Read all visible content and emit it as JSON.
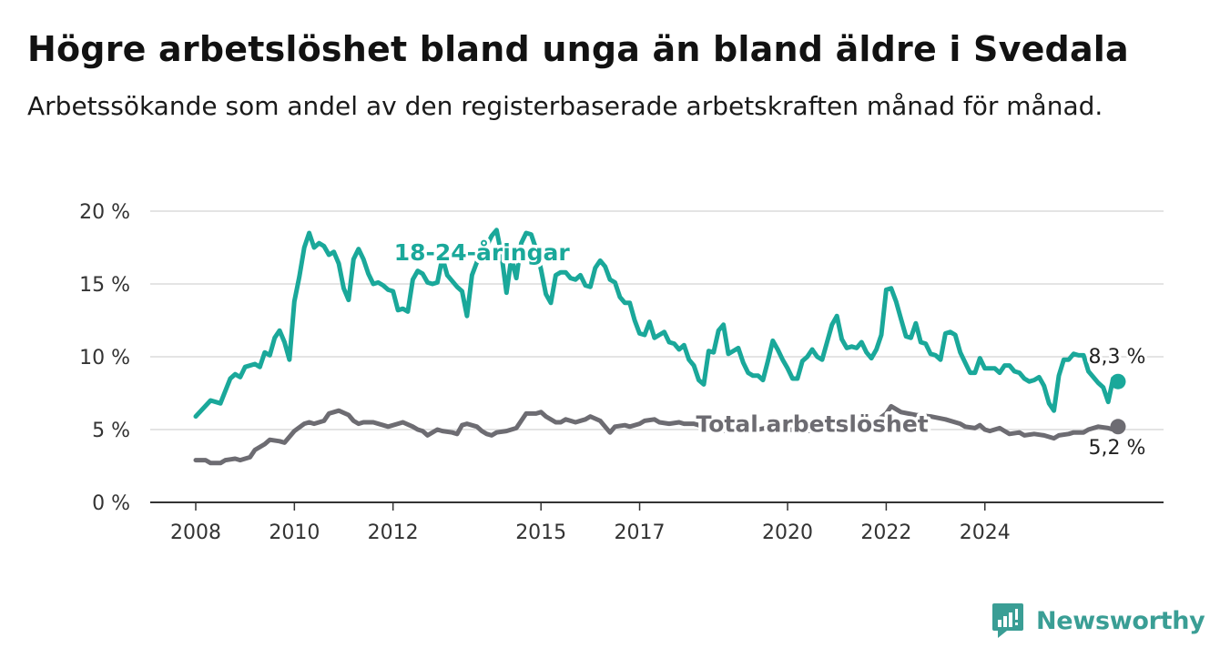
{
  "header": {
    "title": "Högre arbetslöshet bland unga än bland äldre i Svedala",
    "subtitle": "Arbetssökande som andel av den registerbaserade arbetskraften månad för månad."
  },
  "branding": {
    "name": "Newsworthy",
    "icon": "newsworthy-logo-icon",
    "color": "#3a9e95"
  },
  "chart_data": {
    "type": "line",
    "ylim": [
      0,
      20
    ],
    "y_ticks": [
      0,
      5,
      10,
      15,
      20
    ],
    "y_tick_labels": [
      "0 %",
      "5 %",
      "10 %",
      "15 %",
      "20 %"
    ],
    "x_ticks": [
      2008,
      2010,
      2012,
      2015,
      2017,
      2020,
      2022,
      2024
    ],
    "x_tick_labels": [
      "2008",
      "2010",
      "2012",
      "2015",
      "2017",
      "2020",
      "2022",
      "2024"
    ],
    "grid": true,
    "series": [
      {
        "name": "18-24-åringar",
        "color": "#1aa89a",
        "end_label": "8,3 %",
        "points": [
          [
            2008.0,
            5.9
          ],
          [
            2008.3,
            7.0
          ],
          [
            2008.5,
            6.8
          ],
          [
            2008.7,
            8.5
          ],
          [
            2008.8,
            8.8
          ],
          [
            2008.9,
            8.6
          ],
          [
            2009.0,
            9.3
          ],
          [
            2009.2,
            9.5
          ],
          [
            2009.3,
            9.3
          ],
          [
            2009.4,
            10.3
          ],
          [
            2009.5,
            10.1
          ],
          [
            2009.6,
            11.3
          ],
          [
            2009.7,
            11.8
          ],
          [
            2009.8,
            11.0
          ],
          [
            2009.9,
            9.8
          ],
          [
            2010.0,
            13.8
          ],
          [
            2010.1,
            15.5
          ],
          [
            2010.2,
            17.5
          ],
          [
            2010.3,
            18.5
          ],
          [
            2010.4,
            17.5
          ],
          [
            2010.5,
            17.8
          ],
          [
            2010.6,
            17.6
          ],
          [
            2010.7,
            17.0
          ],
          [
            2010.8,
            17.2
          ],
          [
            2010.9,
            16.4
          ],
          [
            2011.0,
            14.7
          ],
          [
            2011.1,
            13.9
          ],
          [
            2011.2,
            16.7
          ],
          [
            2011.3,
            17.4
          ],
          [
            2011.4,
            16.7
          ],
          [
            2011.5,
            15.7
          ],
          [
            2011.6,
            15.0
          ],
          [
            2011.7,
            15.1
          ],
          [
            2011.8,
            14.9
          ],
          [
            2011.9,
            14.6
          ],
          [
            2012.0,
            14.5
          ],
          [
            2012.1,
            13.2
          ],
          [
            2012.2,
            13.3
          ],
          [
            2012.3,
            13.1
          ],
          [
            2012.4,
            15.3
          ],
          [
            2012.5,
            15.9
          ],
          [
            2012.6,
            15.7
          ],
          [
            2012.7,
            15.1
          ],
          [
            2012.8,
            15.0
          ],
          [
            2012.9,
            15.1
          ],
          [
            2013.0,
            16.8
          ],
          [
            2013.1,
            15.6
          ],
          [
            2013.2,
            15.2
          ],
          [
            2013.3,
            14.8
          ],
          [
            2013.4,
            14.5
          ],
          [
            2013.5,
            12.8
          ],
          [
            2013.6,
            15.6
          ],
          [
            2013.7,
            16.5
          ],
          [
            2013.8,
            17.2
          ],
          [
            2013.9,
            17.6
          ],
          [
            2014.0,
            18.3
          ],
          [
            2014.1,
            18.7
          ],
          [
            2014.2,
            17.0
          ],
          [
            2014.3,
            14.4
          ],
          [
            2014.4,
            16.8
          ],
          [
            2014.5,
            15.4
          ],
          [
            2014.6,
            17.8
          ],
          [
            2014.7,
            18.5
          ],
          [
            2014.8,
            18.4
          ],
          [
            2014.9,
            17.4
          ],
          [
            2015.0,
            16.0
          ],
          [
            2015.1,
            14.3
          ],
          [
            2015.2,
            13.7
          ],
          [
            2015.3,
            15.6
          ],
          [
            2015.4,
            15.8
          ],
          [
            2015.5,
            15.8
          ],
          [
            2015.6,
            15.4
          ],
          [
            2015.7,
            15.3
          ],
          [
            2015.8,
            15.6
          ],
          [
            2015.9,
            14.9
          ],
          [
            2016.0,
            14.8
          ],
          [
            2016.1,
            16.1
          ],
          [
            2016.2,
            16.6
          ],
          [
            2016.3,
            16.2
          ],
          [
            2016.4,
            15.3
          ],
          [
            2016.5,
            15.1
          ],
          [
            2016.6,
            14.1
          ],
          [
            2016.7,
            13.7
          ],
          [
            2016.8,
            13.7
          ],
          [
            2016.9,
            12.5
          ],
          [
            2017.0,
            11.6
          ],
          [
            2017.1,
            11.5
          ],
          [
            2017.2,
            12.4
          ],
          [
            2017.3,
            11.3
          ],
          [
            2017.4,
            11.5
          ],
          [
            2017.5,
            11.7
          ],
          [
            2017.6,
            11.0
          ],
          [
            2017.7,
            10.9
          ],
          [
            2017.8,
            10.5
          ],
          [
            2017.9,
            10.8
          ],
          [
            2018.0,
            9.8
          ],
          [
            2018.1,
            9.4
          ],
          [
            2018.2,
            8.4
          ],
          [
            2018.3,
            8.1
          ],
          [
            2018.4,
            10.4
          ],
          [
            2018.5,
            10.3
          ],
          [
            2018.6,
            11.8
          ],
          [
            2018.7,
            12.2
          ],
          [
            2018.8,
            10.2
          ],
          [
            2018.9,
            10.4
          ],
          [
            2019.0,
            10.6
          ],
          [
            2019.1,
            9.6
          ],
          [
            2019.2,
            8.9
          ],
          [
            2019.3,
            8.7
          ],
          [
            2019.4,
            8.7
          ],
          [
            2019.5,
            8.4
          ],
          [
            2019.6,
            9.7
          ],
          [
            2019.7,
            11.1
          ],
          [
            2019.8,
            10.5
          ],
          [
            2019.9,
            9.8
          ],
          [
            2020.0,
            9.2
          ],
          [
            2020.1,
            8.5
          ],
          [
            2020.2,
            8.5
          ],
          [
            2020.3,
            9.7
          ],
          [
            2020.4,
            10.0
          ],
          [
            2020.5,
            10.5
          ],
          [
            2020.6,
            10.0
          ],
          [
            2020.7,
            9.8
          ],
          [
            2020.8,
            11.0
          ],
          [
            2020.9,
            12.2
          ],
          [
            2021.0,
            12.8
          ],
          [
            2021.1,
            11.2
          ],
          [
            2021.2,
            10.6
          ],
          [
            2021.3,
            10.7
          ],
          [
            2021.4,
            10.6
          ],
          [
            2021.5,
            11.0
          ],
          [
            2021.6,
            10.3
          ],
          [
            2021.7,
            9.9
          ],
          [
            2021.8,
            10.5
          ],
          [
            2021.9,
            11.5
          ],
          [
            2022.0,
            14.6
          ],
          [
            2022.1,
            14.7
          ],
          [
            2022.2,
            13.8
          ],
          [
            2022.3,
            12.6
          ],
          [
            2022.4,
            11.4
          ],
          [
            2022.5,
            11.3
          ],
          [
            2022.6,
            12.3
          ],
          [
            2022.7,
            11.0
          ],
          [
            2022.8,
            10.9
          ],
          [
            2022.9,
            10.2
          ],
          [
            2023.0,
            10.1
          ],
          [
            2023.1,
            9.8
          ],
          [
            2023.2,
            11.6
          ],
          [
            2023.3,
            11.7
          ],
          [
            2023.4,
            11.5
          ],
          [
            2023.5,
            10.3
          ],
          [
            2023.6,
            9.6
          ],
          [
            2023.7,
            8.9
          ],
          [
            2023.8,
            8.9
          ],
          [
            2023.9,
            9.9
          ],
          [
            2024.0,
            9.2
          ],
          [
            2024.1,
            9.2
          ],
          [
            2024.2,
            9.2
          ],
          [
            2024.3,
            8.9
          ],
          [
            2024.4,
            9.4
          ],
          [
            2024.5,
            9.4
          ],
          [
            2024.6,
            9.0
          ],
          [
            2024.7,
            8.9
          ],
          [
            2024.8,
            8.5
          ],
          [
            2024.9,
            8.3
          ],
          [
            2025.0,
            8.4
          ],
          [
            2025.1,
            8.6
          ],
          [
            2025.2,
            8.0
          ],
          [
            2025.3,
            6.8
          ],
          [
            2025.4,
            6.3
          ],
          [
            2025.5,
            8.7
          ],
          [
            2025.6,
            9.8
          ],
          [
            2025.7,
            9.8
          ],
          [
            2025.8,
            10.2
          ],
          [
            2025.9,
            10.1
          ],
          [
            2026.0,
            10.1
          ],
          [
            2026.1,
            9.0
          ],
          [
            2026.2,
            8.6
          ],
          [
            2026.3,
            8.2
          ],
          [
            2026.4,
            7.9
          ],
          [
            2026.5,
            6.9
          ],
          [
            2026.6,
            8.5
          ],
          [
            2026.7,
            8.3
          ]
        ]
      },
      {
        "name": "Total arbetslöshet",
        "color": "#6d6c72",
        "end_label": "5,2 %",
        "points": [
          [
            2008.0,
            2.9
          ],
          [
            2008.2,
            2.9
          ],
          [
            2008.3,
            2.7
          ],
          [
            2008.5,
            2.7
          ],
          [
            2008.6,
            2.9
          ],
          [
            2008.8,
            3.0
          ],
          [
            2008.9,
            2.9
          ],
          [
            2009.1,
            3.1
          ],
          [
            2009.2,
            3.6
          ],
          [
            2009.4,
            4.0
          ],
          [
            2009.5,
            4.3
          ],
          [
            2009.7,
            4.2
          ],
          [
            2009.8,
            4.1
          ],
          [
            2010.0,
            4.9
          ],
          [
            2010.2,
            5.4
          ],
          [
            2010.3,
            5.5
          ],
          [
            2010.4,
            5.4
          ],
          [
            2010.6,
            5.6
          ],
          [
            2010.7,
            6.1
          ],
          [
            2010.8,
            6.2
          ],
          [
            2010.9,
            6.3
          ],
          [
            2011.1,
            6.0
          ],
          [
            2011.2,
            5.6
          ],
          [
            2011.3,
            5.4
          ],
          [
            2011.4,
            5.5
          ],
          [
            2011.6,
            5.5
          ],
          [
            2011.8,
            5.3
          ],
          [
            2011.9,
            5.2
          ],
          [
            2012.1,
            5.4
          ],
          [
            2012.2,
            5.5
          ],
          [
            2012.4,
            5.2
          ],
          [
            2012.5,
            5.0
          ],
          [
            2012.6,
            4.9
          ],
          [
            2012.7,
            4.6
          ],
          [
            2012.9,
            5.0
          ],
          [
            2013.0,
            4.9
          ],
          [
            2013.2,
            4.8
          ],
          [
            2013.3,
            4.7
          ],
          [
            2013.4,
            5.3
          ],
          [
            2013.5,
            5.4
          ],
          [
            2013.7,
            5.2
          ],
          [
            2013.8,
            4.9
          ],
          [
            2013.9,
            4.7
          ],
          [
            2014.0,
            4.6
          ],
          [
            2014.1,
            4.8
          ],
          [
            2014.3,
            4.9
          ],
          [
            2014.5,
            5.1
          ],
          [
            2014.6,
            5.6
          ],
          [
            2014.7,
            6.1
          ],
          [
            2014.9,
            6.1
          ],
          [
            2015.0,
            6.2
          ],
          [
            2015.1,
            5.9
          ],
          [
            2015.3,
            5.5
          ],
          [
            2015.4,
            5.5
          ],
          [
            2015.5,
            5.7
          ],
          [
            2015.6,
            5.6
          ],
          [
            2015.7,
            5.5
          ],
          [
            2015.9,
            5.7
          ],
          [
            2016.0,
            5.9
          ],
          [
            2016.2,
            5.6
          ],
          [
            2016.3,
            5.2
          ],
          [
            2016.4,
            4.8
          ],
          [
            2016.5,
            5.2
          ],
          [
            2016.7,
            5.3
          ],
          [
            2016.8,
            5.2
          ],
          [
            2017.0,
            5.4
          ],
          [
            2017.1,
            5.6
          ],
          [
            2017.3,
            5.7
          ],
          [
            2017.4,
            5.5
          ],
          [
            2017.6,
            5.4
          ],
          [
            2017.8,
            5.5
          ],
          [
            2017.9,
            5.4
          ],
          [
            2018.1,
            5.4
          ],
          [
            2018.2,
            5.3
          ],
          [
            2018.3,
            5.2
          ],
          [
            2018.4,
            5.3
          ],
          [
            2018.5,
            5.4
          ],
          [
            2018.6,
            5.0
          ],
          [
            2018.8,
            4.9
          ],
          [
            2018.9,
            4.9
          ],
          [
            2019.0,
            4.9
          ],
          [
            2019.1,
            4.9
          ],
          [
            2019.2,
            5.0
          ],
          [
            2019.4,
            5.0
          ],
          [
            2019.7,
            5.2
          ],
          [
            2020.0,
            5.0
          ],
          [
            2020.4,
            4.9
          ],
          [
            2020.8,
            5.1
          ],
          [
            2021.0,
            5.2
          ],
          [
            2021.4,
            5.4
          ],
          [
            2021.8,
            5.6
          ],
          [
            2022.0,
            6.1
          ],
          [
            2022.1,
            6.6
          ],
          [
            2022.3,
            6.2
          ],
          [
            2022.6,
            6.0
          ],
          [
            2022.9,
            5.9
          ],
          [
            2023.2,
            5.7
          ],
          [
            2023.5,
            5.4
          ],
          [
            2023.6,
            5.2
          ],
          [
            2023.8,
            5.1
          ],
          [
            2023.9,
            5.3
          ],
          [
            2024.0,
            5.0
          ],
          [
            2024.1,
            4.9
          ],
          [
            2024.3,
            5.1
          ],
          [
            2024.4,
            4.9
          ],
          [
            2024.5,
            4.7
          ],
          [
            2024.7,
            4.8
          ],
          [
            2024.8,
            4.6
          ],
          [
            2025.0,
            4.7
          ],
          [
            2025.2,
            4.6
          ],
          [
            2025.4,
            4.4
          ],
          [
            2025.5,
            4.6
          ],
          [
            2025.7,
            4.7
          ],
          [
            2025.8,
            4.8
          ],
          [
            2026.0,
            4.8
          ],
          [
            2026.1,
            5.0
          ],
          [
            2026.3,
            5.2
          ],
          [
            2026.5,
            5.1
          ],
          [
            2026.6,
            5.0
          ],
          [
            2026.7,
            5.2
          ]
        ]
      }
    ],
    "annotations": [
      {
        "text": "18-24-åringar",
        "series": 0,
        "x": 2013.8,
        "y": 17.2
      },
      {
        "text": "Total arbetslöshet",
        "series": 1,
        "x": 2020.5,
        "y": 5.4
      }
    ]
  }
}
